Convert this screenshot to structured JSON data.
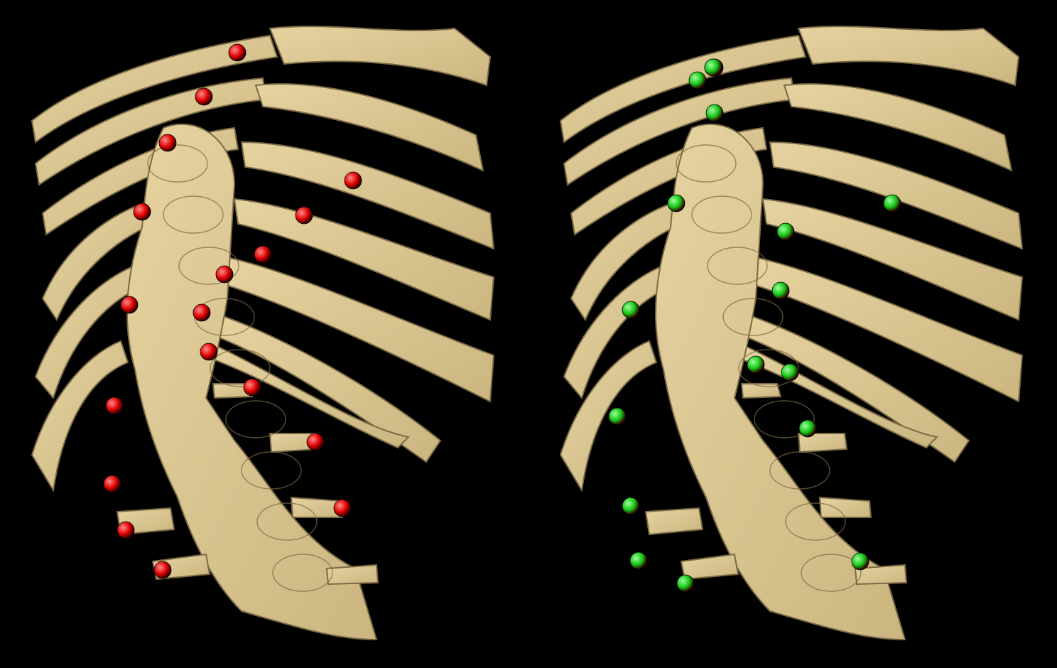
{
  "image": {
    "description_free": true,
    "background_color": "#000000",
    "bone_color": "#e6d3a0",
    "bone_shadow_color": "#7a6a45"
  },
  "panels": [
    {
      "id": "left",
      "marker_color": "#e00000",
      "marker_highlight": "#ff8a8a",
      "marker_count": 18
    },
    {
      "id": "right",
      "marker_color": "#14c414",
      "marker_highlight": "#9dff9d",
      "marker_count": 18
    }
  ]
}
